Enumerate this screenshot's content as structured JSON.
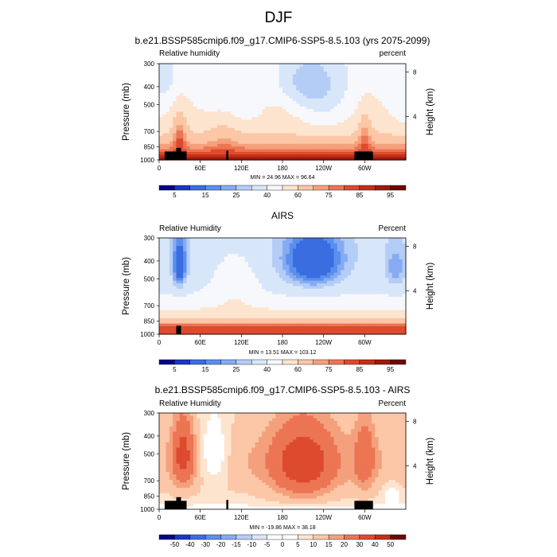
{
  "page_title": "DJF",
  "chart_data": [
    {
      "type": "heatmap",
      "title": "b.e21.BSSP585cmip6.f09_g17.CMIP6-SSP5-8.5.103 (yrs 2075-2099)",
      "left_label": "Relative humidity",
      "right_label": "percent",
      "ylabel": "Pressure (mb)",
      "y2label": "Height (km)",
      "x_ticks": [
        "0",
        "60E",
        "120E",
        "180",
        "120W",
        "60W"
      ],
      "y_ticks": [
        300,
        400,
        500,
        700,
        850,
        1000
      ],
      "y2_ticks": [
        8,
        4
      ],
      "stats": "MIN = 24.96  MAX = 96.64",
      "colorbar_labels": [
        "5",
        "15",
        "25",
        "40",
        "60",
        "75",
        "85",
        "95"
      ],
      "field": "model"
    },
    {
      "type": "heatmap",
      "title": "AIRS",
      "left_label": "Relative Humidity",
      "right_label": "Percent",
      "ylabel": "Pressure (mb)",
      "y2label": "Height (km)",
      "x_ticks": [
        "0",
        "60E",
        "120E",
        "180",
        "120W",
        "60W"
      ],
      "y_ticks": [
        300,
        400,
        500,
        700,
        850,
        1000
      ],
      "y2_ticks": [
        8,
        4
      ],
      "stats": "MIN = 13.51  MAX = 103.12",
      "colorbar_labels": [
        "5",
        "15",
        "25",
        "40",
        "60",
        "75",
        "85",
        "95"
      ],
      "field": "obs"
    },
    {
      "type": "heatmap",
      "title": "b.e21.BSSP585cmip6.f09_g17.CMIP6-SSP5-8.5.103 - AIRS",
      "left_label": "Relative Humidity",
      "right_label": "Percent",
      "ylabel": "Pressure (mb)",
      "y2label": "Height (km)",
      "x_ticks": [
        "0",
        "60E",
        "120E",
        "180",
        "120W",
        "60W"
      ],
      "y_ticks": [
        300,
        400,
        500,
        700,
        850,
        1000
      ],
      "y2_ticks": [
        8,
        4
      ],
      "stats": "MIN = -19.86  MAX = 38.18",
      "colorbar_labels": [
        "-50",
        "-40",
        "-30",
        "-20",
        "-15",
        "-10",
        "-5",
        "0",
        "5",
        "10",
        "15",
        "20",
        "30",
        "40",
        "50"
      ],
      "field": "diff"
    }
  ],
  "colors": {
    "abs_palette": [
      "#05058a",
      "#1a37c4",
      "#3a6ee0",
      "#5b8fee",
      "#86abf2",
      "#b4cdf6",
      "#d8e6fa",
      "#f6f8fc",
      "#fde4cf",
      "#fbc7a6",
      "#f5a07c",
      "#ec7553",
      "#dd4a2e",
      "#c42e18",
      "#9e1a0d",
      "#6e0505"
    ],
    "diff_palette": [
      "#05058a",
      "#1a37c4",
      "#3a6ee0",
      "#5b8fee",
      "#86abf2",
      "#b4cdf6",
      "#d8e6fa",
      "#ffffff",
      "#ffffff",
      "#fde4cf",
      "#fbc7a6",
      "#f5a07c",
      "#ec7553",
      "#dd4a2e",
      "#c42e18",
      "#6e0505"
    ],
    "terrain": "#000000"
  }
}
